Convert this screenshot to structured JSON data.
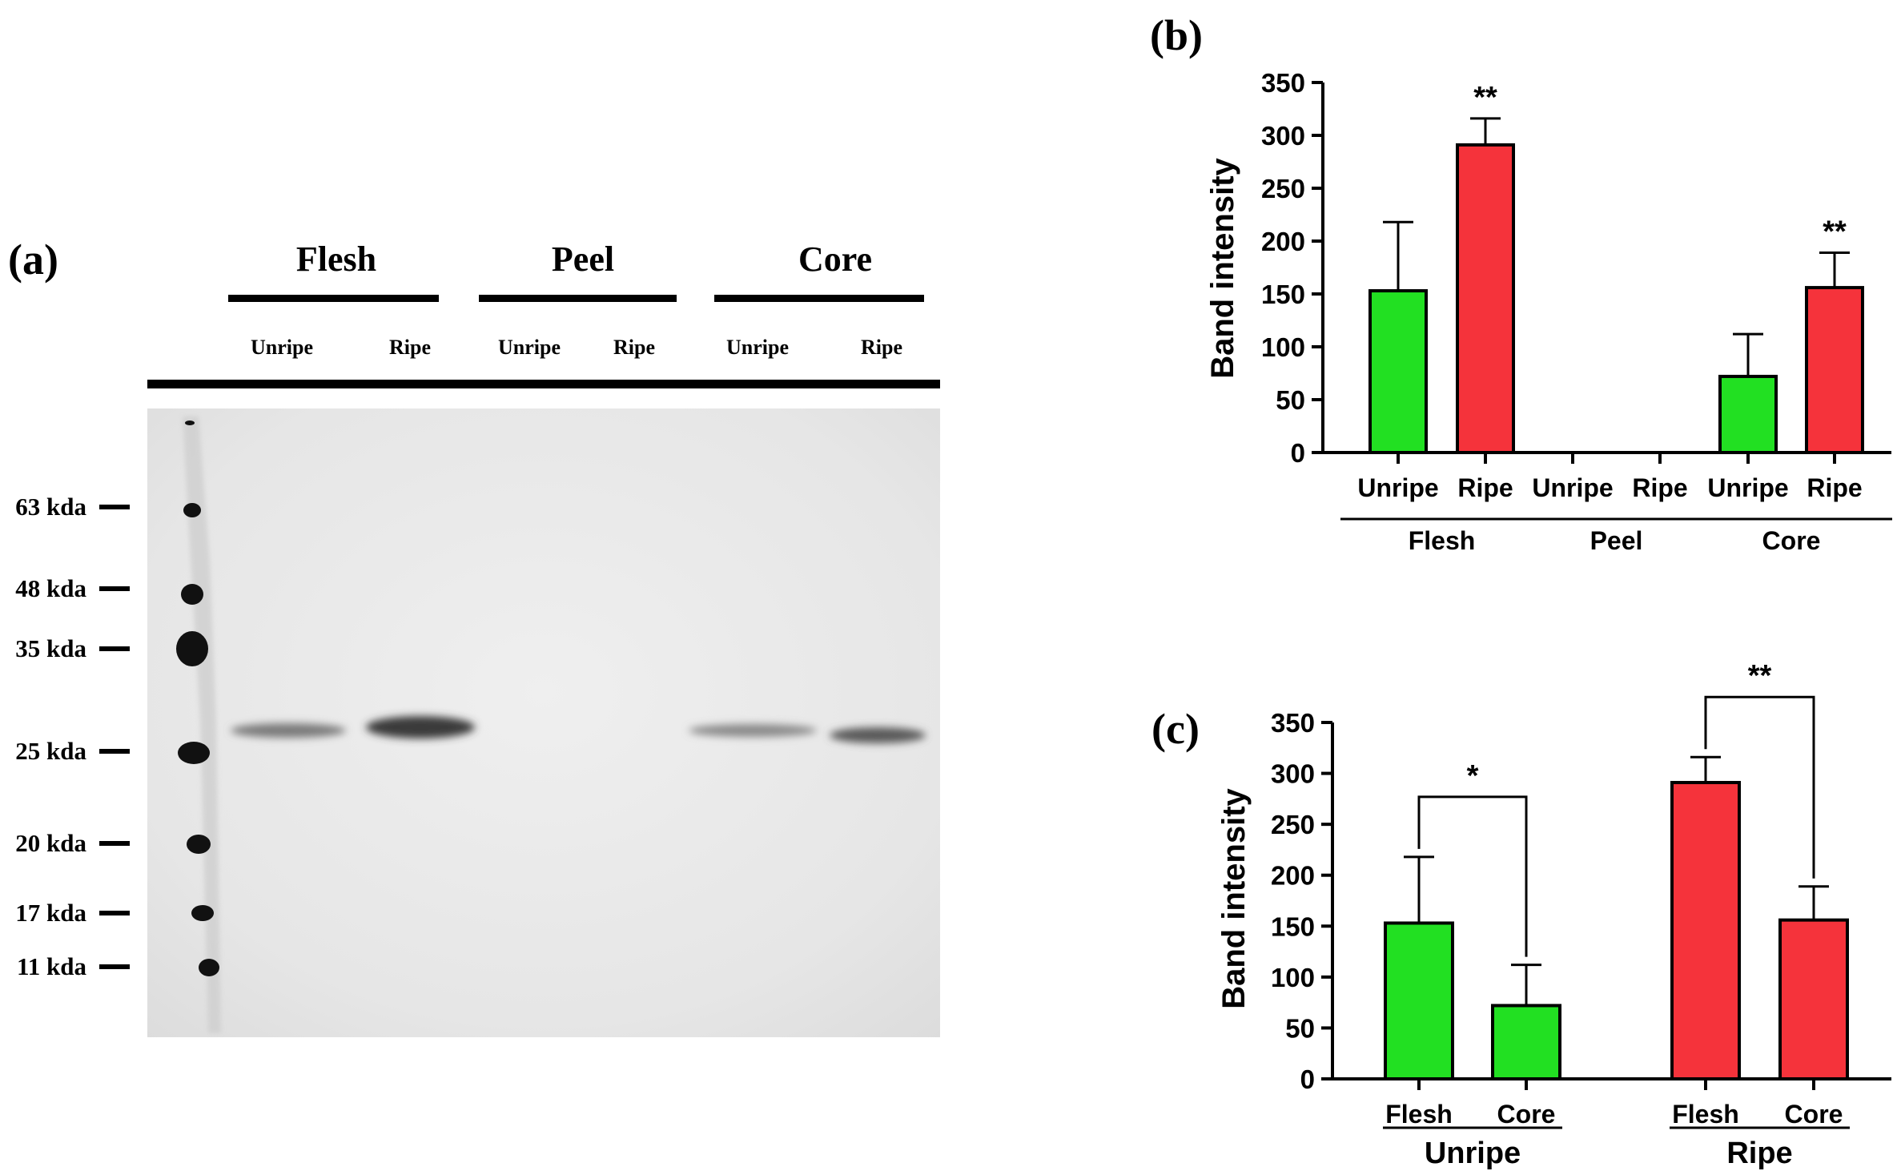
{
  "panel_a": {
    "label": "(a)",
    "groups": [
      {
        "name": "Flesh",
        "lanes": [
          "Unripe",
          "Ripe"
        ]
      },
      {
        "name": "Peel",
        "lanes": [
          "Unripe",
          "Ripe"
        ]
      },
      {
        "name": "Core",
        "lanes": [
          "Unripe",
          "Ripe"
        ]
      }
    ],
    "markers": [
      "63 kda",
      "48 kda",
      "35 kda",
      "25 kda",
      "20 kda",
      "17 kda",
      "11 kda"
    ]
  },
  "chart_data": [
    {
      "type": "bar",
      "panel_label": "(b)",
      "ylabel": "Band intensity",
      "ylim": [
        0,
        350
      ],
      "yticks": [
        0,
        50,
        100,
        150,
        200,
        250,
        300,
        350
      ],
      "categories": [
        "Unripe",
        "Ripe",
        "Unripe",
        "Ripe",
        "Unripe",
        "Ripe"
      ],
      "groups": [
        {
          "name": "Flesh",
          "members": [
            0,
            1
          ]
        },
        {
          "name": "Peel",
          "members": [
            2,
            3
          ]
        },
        {
          "name": "Core",
          "members": [
            4,
            5
          ]
        }
      ],
      "values": [
        153,
        291,
        0,
        0,
        72,
        156
      ],
      "errors": [
        65,
        25,
        0,
        0,
        40,
        33
      ],
      "colors": [
        "#22e022",
        "#f5333b",
        "#22e022",
        "#f5333b",
        "#22e022",
        "#f5333b"
      ],
      "annotations": [
        {
          "index": 1,
          "text": "**"
        },
        {
          "index": 5,
          "text": "**"
        }
      ]
    },
    {
      "type": "bar",
      "panel_label": "(c)",
      "ylabel": "Band intensity",
      "ylim": [
        0,
        350
      ],
      "yticks": [
        0,
        50,
        100,
        150,
        200,
        250,
        300,
        350
      ],
      "categories": [
        "Flesh",
        "Core",
        "Flesh",
        "Core"
      ],
      "groups": [
        {
          "name": "Unripe",
          "members": [
            0,
            1
          ]
        },
        {
          "name": "Ripe",
          "members": [
            2,
            3
          ]
        }
      ],
      "values": [
        153,
        72,
        291,
        156
      ],
      "errors": [
        65,
        40,
        25,
        33
      ],
      "colors": [
        "#22e022",
        "#22e022",
        "#f5333b",
        "#f5333b"
      ],
      "comparisons": [
        {
          "from": 0,
          "to": 1,
          "text": "*"
        },
        {
          "from": 2,
          "to": 3,
          "text": "**"
        }
      ]
    }
  ]
}
